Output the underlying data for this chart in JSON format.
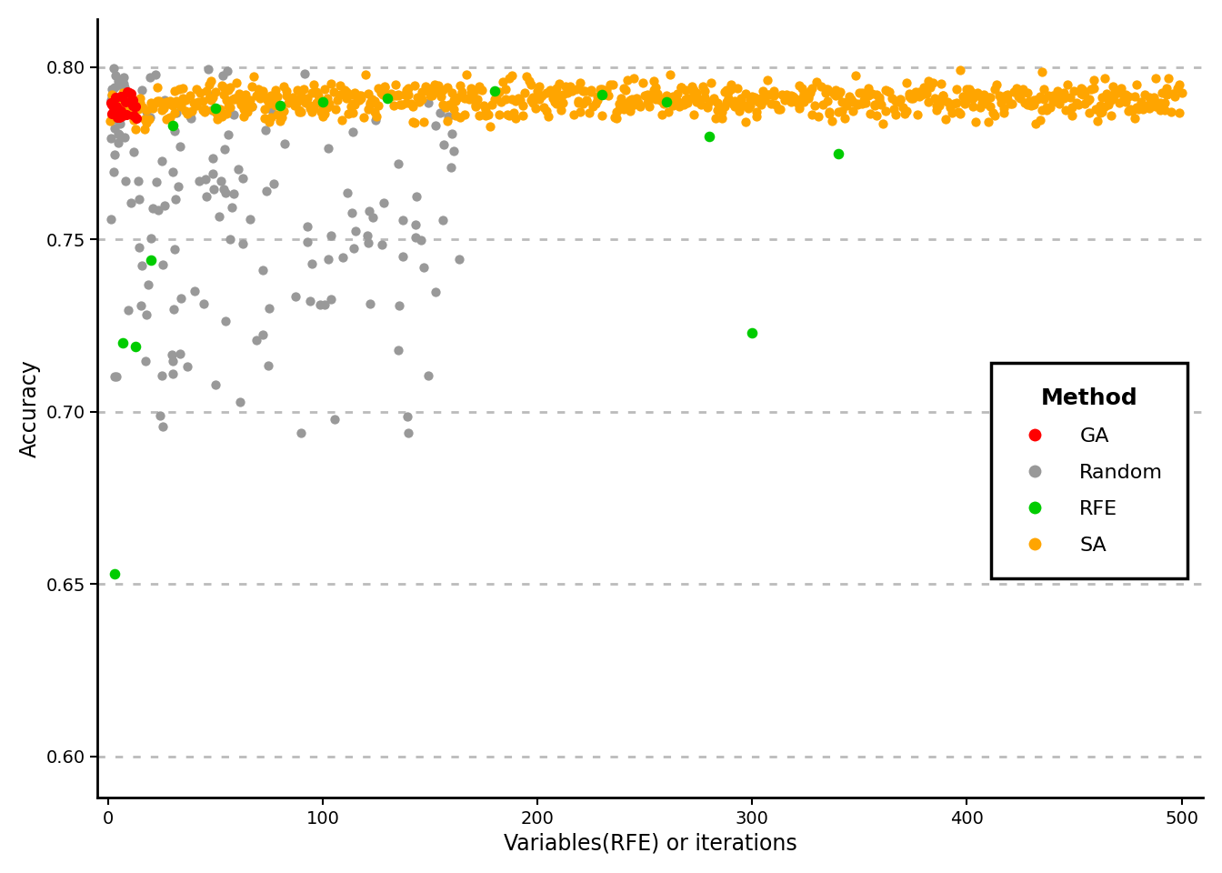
{
  "xlabel": "Variables(RFE) or iterations",
  "ylabel": "Accuracy",
  "xlim": [
    -5,
    510
  ],
  "ylim": [
    0.588,
    0.814
  ],
  "yticks": [
    0.6,
    0.65,
    0.7,
    0.75,
    0.8
  ],
  "xticks": [
    0,
    100,
    200,
    300,
    400,
    500
  ],
  "legend_title": "Method",
  "legend_labels": [
    "GA",
    "Random",
    "RFE",
    "SA"
  ],
  "legend_colors": [
    "#FF0000",
    "#999999",
    "#00CC00",
    "#FFA500"
  ],
  "background_color": "#FFFFFF",
  "grid_color": "#BBBBBB"
}
